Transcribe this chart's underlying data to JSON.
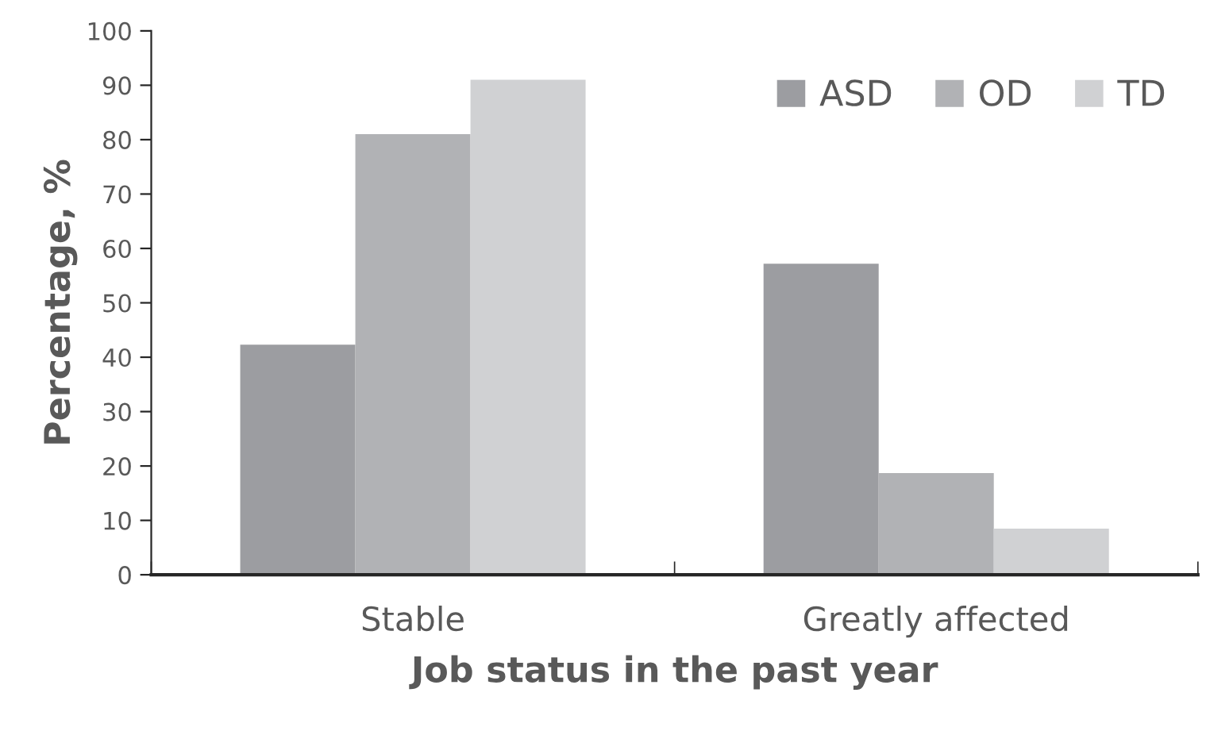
{
  "chart_data": {
    "type": "bar",
    "xlabel": "Job status in the past year",
    "ylabel": "Percentage, %",
    "categories": [
      "Stable",
      "Greatly affected"
    ],
    "series": [
      {
        "name": "ASD",
        "color": "#9c9da1",
        "values": [
          42.3,
          57.2
        ]
      },
      {
        "name": "OD",
        "color": "#b1b2b5",
        "values": [
          81,
          18.7
        ]
      },
      {
        "name": "TD",
        "color": "#d0d1d3",
        "values": [
          91,
          8.5
        ]
      }
    ],
    "ylim": [
      0,
      100
    ],
    "yticks": [
      0,
      10,
      20,
      30,
      40,
      50,
      60,
      70,
      80,
      90,
      100
    ],
    "grid": false,
    "legend": "top right"
  }
}
